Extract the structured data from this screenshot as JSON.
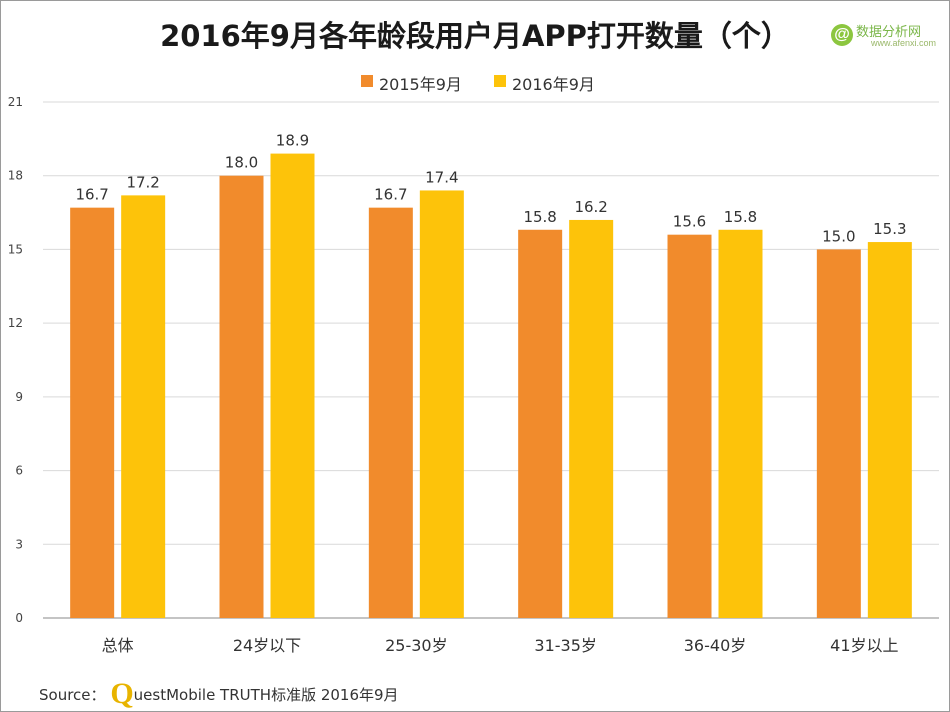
{
  "title": "2016年9月各年龄段用户月APP打开数量（个）",
  "logo": {
    "mark": "@",
    "name": "数据分析网",
    "url": "www.afenxi.com"
  },
  "source": {
    "label": "Source：",
    "q_letter": "Q",
    "rest": "uestMobile TRUTH标准版 2016年9月"
  },
  "colors": {
    "series_2015": "#f18b2c",
    "series_2016": "#fdc30a",
    "grid": "#d9d9d9",
    "axis": "#888888"
  },
  "chart_data": {
    "type": "bar",
    "title": "2016年9月各年龄段用户月APP打开数量（个）",
    "categories": [
      "总体",
      "24岁以下",
      "25-30岁",
      "31-35岁",
      "36-40岁",
      "41岁以上"
    ],
    "series": [
      {
        "name": "2015年9月",
        "values": [
          16.7,
          18.0,
          16.7,
          15.8,
          15.6,
          15.0
        ],
        "labels": [
          "16.7",
          "18.0",
          "16.7",
          "15.8",
          "15.6",
          "15.0"
        ]
      },
      {
        "name": "2016年9月",
        "values": [
          17.2,
          18.9,
          17.4,
          16.2,
          15.8,
          15.3
        ],
        "labels": [
          "17.2",
          "18.9",
          "17.4",
          "16.2",
          "15.8",
          "15.3"
        ]
      }
    ],
    "yticks": [
      0,
      3,
      6,
      9,
      12,
      15,
      18,
      21
    ],
    "ylim": [
      0,
      21
    ],
    "grid": true,
    "legend": "top-center",
    "xlabel": "",
    "ylabel": ""
  }
}
